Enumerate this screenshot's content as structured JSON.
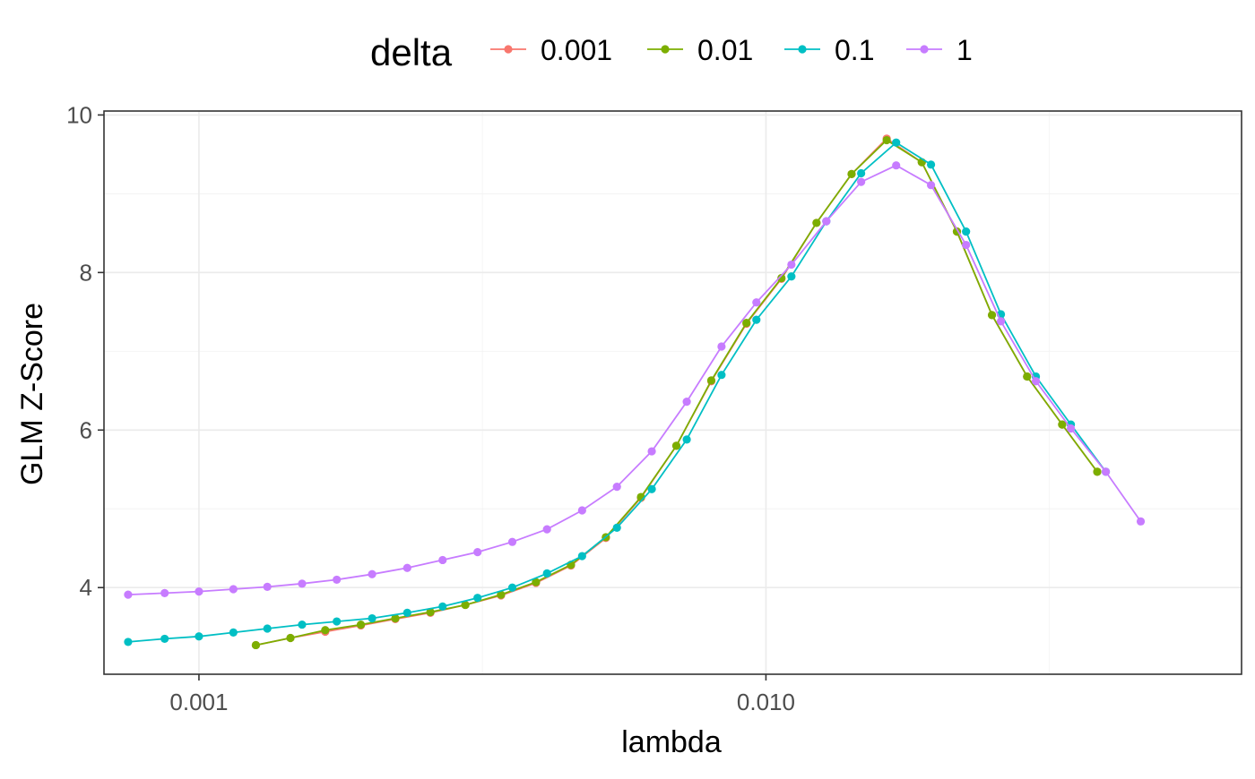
{
  "chart_data": {
    "type": "line",
    "xlabel": "lambda",
    "ylabel": "GLM Z-Score",
    "x_scale": "log10",
    "xlim": [
      0.00068,
      0.069
    ],
    "ylim": [
      2.9,
      10.05
    ],
    "x_ticks": [
      0.001,
      0.01
    ],
    "x_tick_labels": [
      "0.001",
      "0.010"
    ],
    "y_ticks": [
      4,
      6,
      8,
      10
    ],
    "y_tick_labels": [
      "4",
      "6",
      "8",
      "10"
    ],
    "grid": true,
    "legend": {
      "title": "delta",
      "position": "top",
      "entries": [
        "0.001",
        "0.01",
        "0.1",
        "1"
      ]
    },
    "series": [
      {
        "name": "0.001",
        "color": "#F8766D",
        "x": [
          0.00126,
          0.00145,
          0.00167,
          0.00193,
          0.00222,
          0.00256,
          0.00295,
          0.00341,
          0.00393,
          0.00453,
          0.00522,
          0.00602,
          0.00695,
          0.00801,
          0.00924,
          0.01065,
          0.01228,
          0.01416,
          0.01633,
          0.01883,
          0.02172,
          0.02504,
          0.02888,
          0.0333,
          0.0384
        ],
        "y": [
          3.27,
          3.36,
          3.44,
          3.52,
          3.6,
          3.68,
          3.78,
          3.9,
          4.06,
          4.28,
          4.63,
          5.14,
          5.8,
          6.62,
          7.35,
          7.92,
          8.63,
          9.25,
          9.7,
          9.4,
          8.52,
          7.46,
          6.68,
          6.07,
          5.47
        ]
      },
      {
        "name": "0.01",
        "color": "#7CAE00",
        "x": [
          0.00126,
          0.00145,
          0.00167,
          0.00193,
          0.00222,
          0.00256,
          0.00295,
          0.00341,
          0.00393,
          0.00453,
          0.00522,
          0.00602,
          0.00695,
          0.00801,
          0.00924,
          0.01065,
          0.01228,
          0.01416,
          0.01633,
          0.01883,
          0.02172,
          0.02504,
          0.02888,
          0.0333,
          0.0384
        ],
        "y": [
          3.27,
          3.36,
          3.46,
          3.53,
          3.61,
          3.69,
          3.78,
          3.91,
          4.07,
          4.29,
          4.64,
          5.15,
          5.8,
          6.63,
          7.36,
          7.93,
          8.63,
          9.25,
          9.68,
          9.4,
          8.52,
          7.46,
          6.68,
          6.07,
          5.47
        ]
      },
      {
        "name": "0.1",
        "color": "#00BFC4",
        "x": [
          0.00075,
          0.00087,
          0.001,
          0.00115,
          0.00132,
          0.00152,
          0.00175,
          0.00202,
          0.00233,
          0.00269,
          0.0031,
          0.00357,
          0.00411,
          0.00474,
          0.00546,
          0.00629,
          0.00725,
          0.00835,
          0.00962,
          0.01109,
          0.01278,
          0.01472,
          0.01697,
          0.01955,
          0.02254,
          0.02597,
          0.02993,
          0.0345,
          0.03976
        ],
        "y": [
          3.31,
          3.35,
          3.38,
          3.43,
          3.48,
          3.53,
          3.57,
          3.61,
          3.68,
          3.76,
          3.87,
          4.0,
          4.18,
          4.4,
          4.76,
          5.25,
          5.88,
          6.7,
          7.4,
          7.95,
          8.65,
          9.26,
          9.65,
          9.37,
          8.52,
          7.47,
          6.68,
          6.07,
          5.47
        ]
      },
      {
        "name": "1",
        "color": "#C77CFF",
        "x": [
          0.00075,
          0.00087,
          0.001,
          0.00115,
          0.00132,
          0.00152,
          0.00175,
          0.00202,
          0.00233,
          0.00269,
          0.0031,
          0.00357,
          0.00411,
          0.00474,
          0.00546,
          0.00629,
          0.00725,
          0.00835,
          0.00962,
          0.01109,
          0.01278,
          0.01472,
          0.01697,
          0.01955,
          0.02254,
          0.02597,
          0.02993,
          0.0345,
          0.03976,
          0.04582
        ],
        "y": [
          3.91,
          3.93,
          3.95,
          3.98,
          4.01,
          4.05,
          4.1,
          4.17,
          4.25,
          4.35,
          4.45,
          4.58,
          4.74,
          4.98,
          5.28,
          5.73,
          6.36,
          7.06,
          7.62,
          8.1,
          8.65,
          9.15,
          9.36,
          9.11,
          8.35,
          7.38,
          6.62,
          6.02,
          5.47,
          4.84
        ]
      }
    ]
  }
}
